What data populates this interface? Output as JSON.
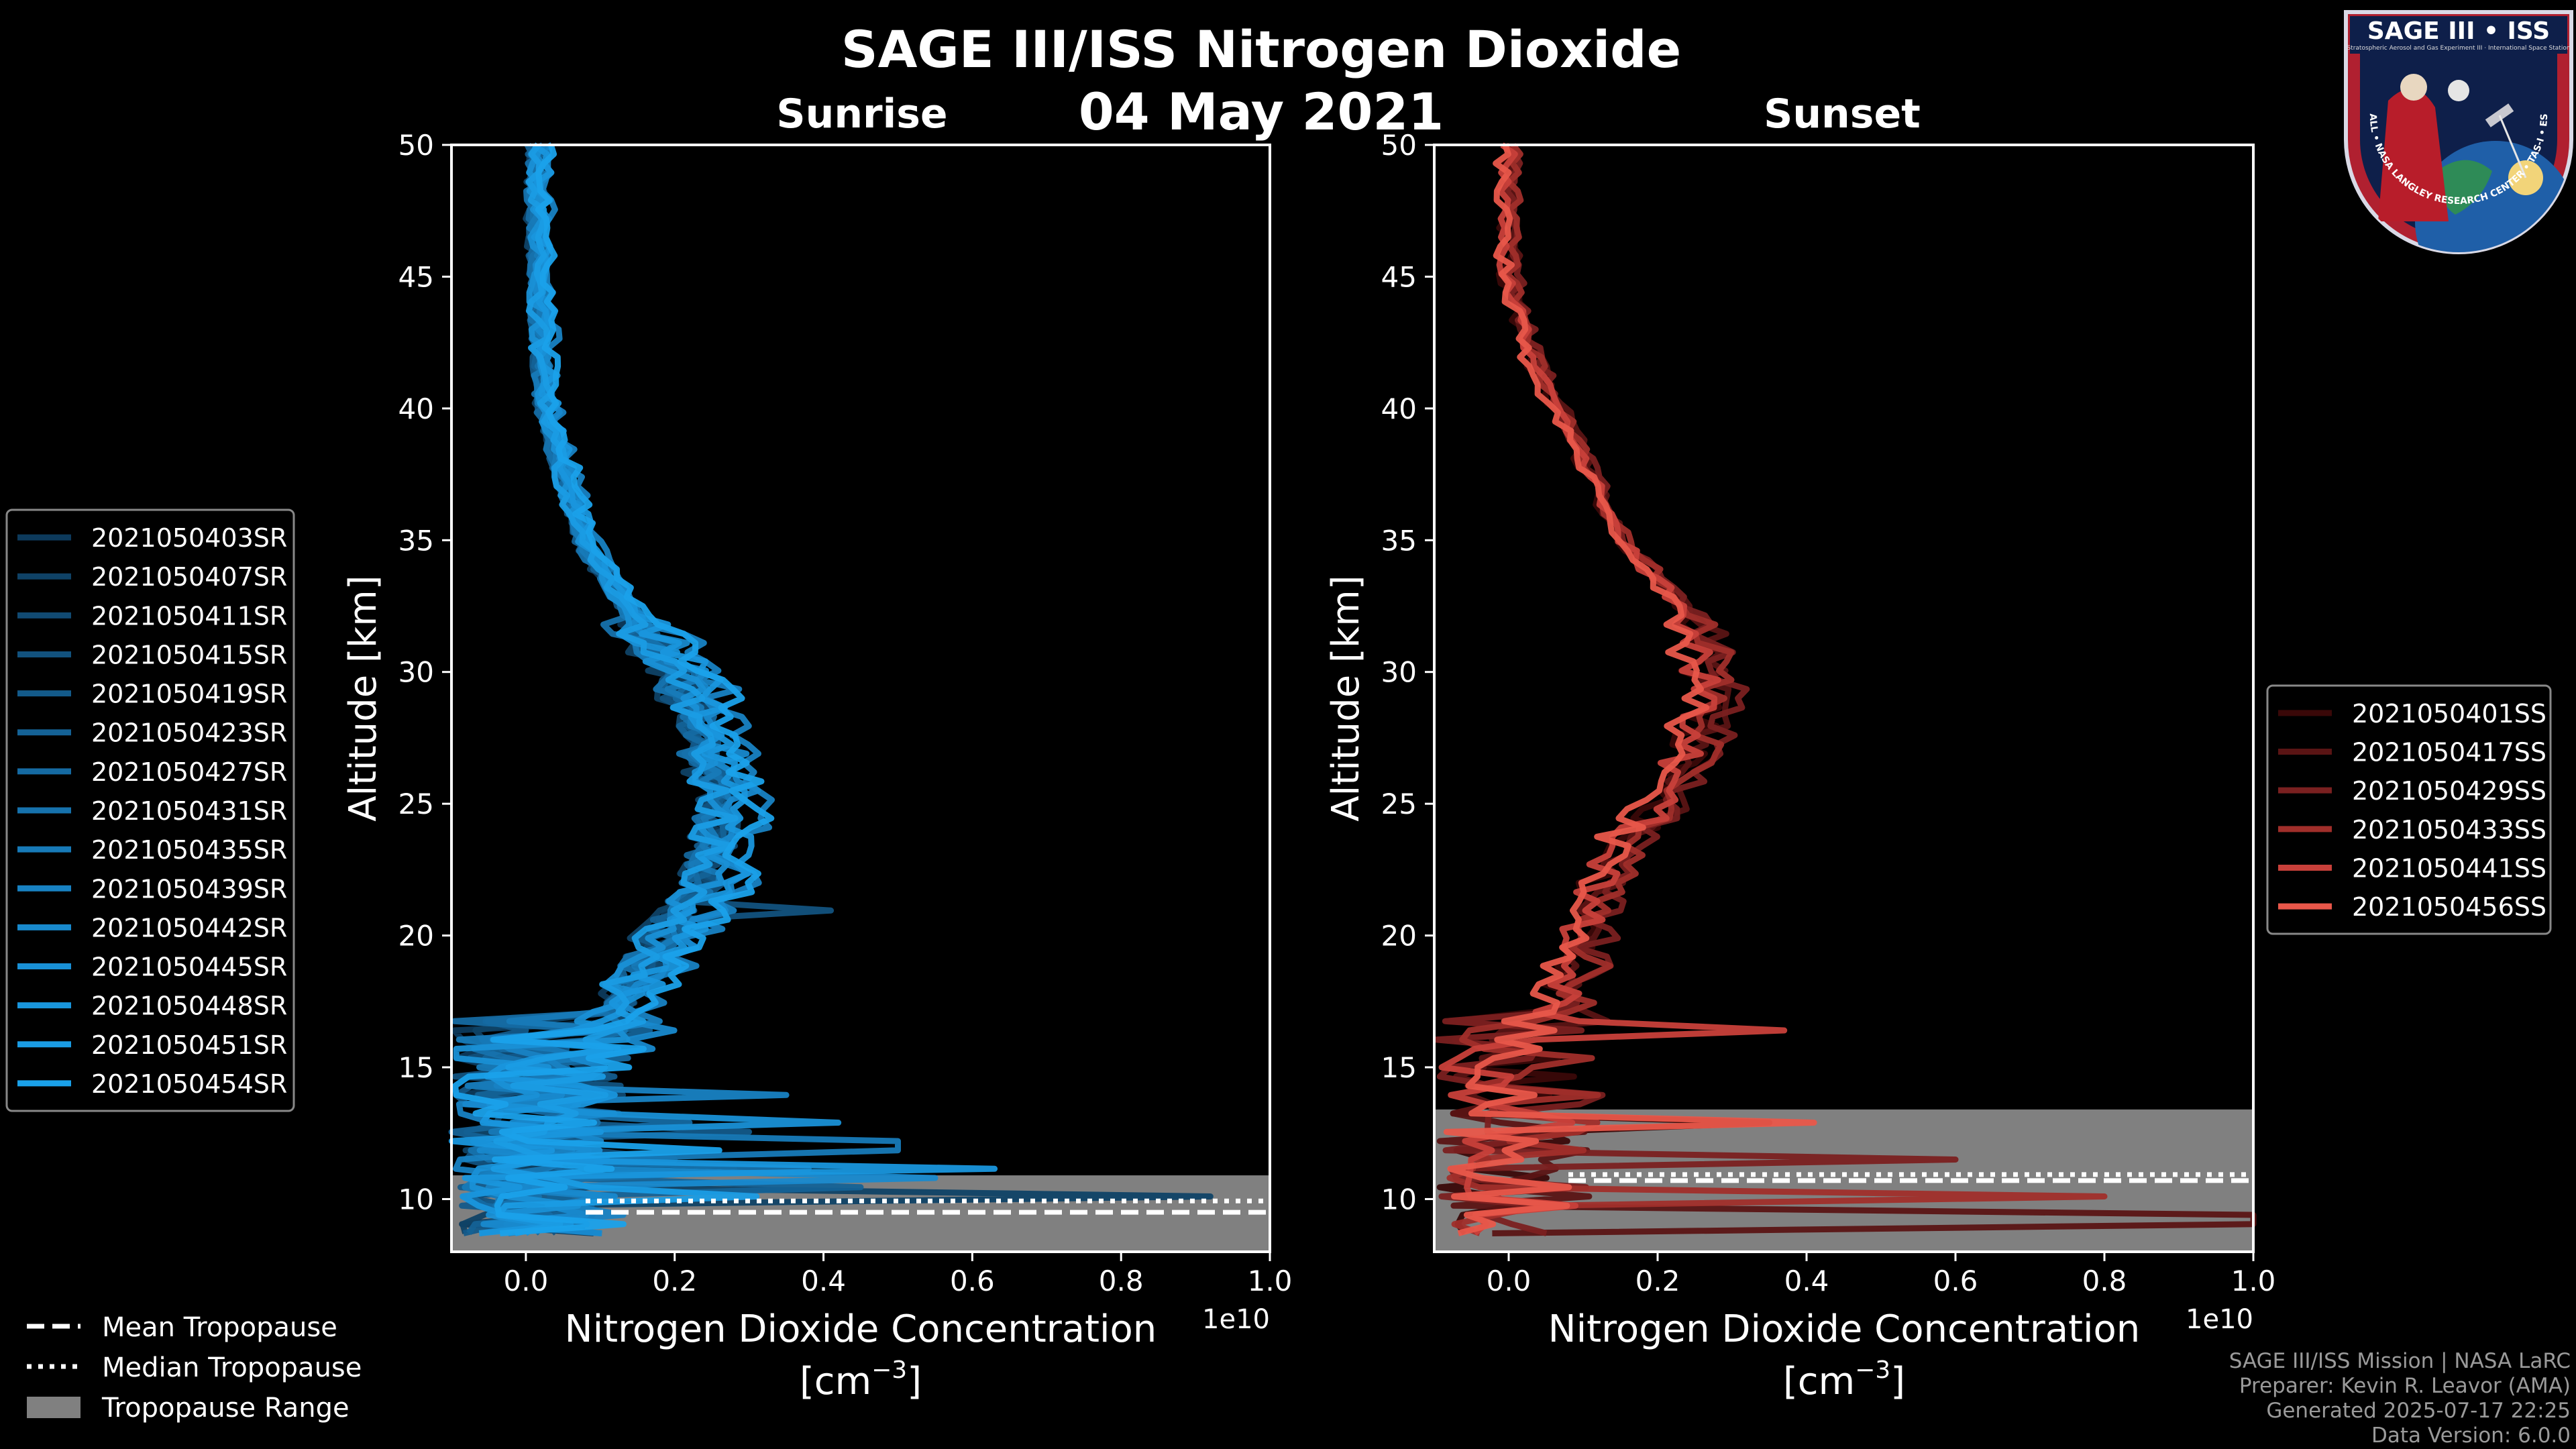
{
  "figure": {
    "title_line1": "SAGE III/ISS Nitrogen Dioxide",
    "title_line2": "04 May 2021",
    "credits": [
      "SAGE III/ISS Mission | NASA LaRC",
      "Preparer: Kevin R. Leavor (AMA)",
      "Generated 2025-07-17 22:25",
      "Data Version: 6.0.0"
    ],
    "tropopause_legend": [
      "Mean Tropopause",
      "Median Tropopause",
      "Tropopause Range"
    ],
    "logo": {
      "text_top": "SAGE III • ISS",
      "text_sub": "Stratospheric Aerosol and Gas Experiment III · International Space Station",
      "text_ring": "BALL • NASA LANGLEY RESEARCH CENTER • TAS-I • ESA"
    },
    "colors": {
      "background": "#000000",
      "sunrise_series": [
        "#0d3a5c",
        "#0f4266",
        "#114a72",
        "#12527e",
        "#135a8a",
        "#146296",
        "#156aa2",
        "#1672ad",
        "#177ab8",
        "#1882c3",
        "#1889cd",
        "#1990d6",
        "#1996dd",
        "#1a9ce4",
        "#1aa1ea"
      ],
      "sunset_series": [
        "#3a0808",
        "#5a1414",
        "#7a2020",
        "#a02e2a",
        "#c8403a",
        "#e8574a"
      ],
      "tropopause_range": "#808080",
      "tropopause_lines": "#ffffff"
    }
  },
  "chart_data": [
    {
      "type": "line",
      "title": "Sunrise",
      "xlabel": "Nitrogen Dioxide Concentration",
      "xunit": "[cm",
      "xunit_exp": "−3",
      "xunit_close": "]",
      "x_offset_label": "1e10",
      "ylabel": "Altitude [km]",
      "xlim": [
        -0.1,
        1.0
      ],
      "ylim": [
        8,
        50
      ],
      "xticks": [
        "0.0",
        "0.2",
        "0.4",
        "0.6",
        "0.8",
        "1.0"
      ],
      "xtick_values": [
        0.0,
        0.2,
        0.4,
        0.6,
        0.8,
        1.0
      ],
      "yticks": [
        "10",
        "15",
        "20",
        "25",
        "30",
        "35",
        "40",
        "45",
        "50"
      ],
      "ytick_values": [
        10,
        15,
        20,
        25,
        30,
        35,
        40,
        45,
        50
      ],
      "legend_position": "left",
      "tropopause": {
        "range": [
          8,
          10.9
        ],
        "mean": 9.5,
        "median": 9.7
      },
      "profile_key_points": [
        [
          50,
          0.02
        ],
        [
          45,
          0.02
        ],
        [
          40,
          0.03
        ],
        [
          35,
          0.08
        ],
        [
          32,
          0.15
        ],
        [
          30,
          0.22
        ],
        [
          27,
          0.26
        ],
        [
          25,
          0.28
        ],
        [
          22,
          0.26
        ],
        [
          20,
          0.2
        ],
        [
          18,
          0.15
        ],
        [
          16,
          0.1
        ],
        [
          14,
          0.06
        ],
        [
          12,
          0.03
        ],
        [
          10,
          0.02
        ],
        [
          8.5,
          0.02
        ]
      ],
      "series": [
        {
          "name": "2021050403SR",
          "spike": [
            11,
            0.28
          ]
        },
        {
          "name": "2021050407SR",
          "spike": [
            10,
            0.92
          ]
        },
        {
          "name": "2021050411SR",
          "spike": [
            11.5,
            0.2
          ]
        },
        {
          "name": "2021050415SR",
          "spike": [
            21,
            0.41
          ]
        },
        {
          "name": "2021050419SR",
          "spike": [
            12.5,
            0.3
          ]
        },
        {
          "name": "2021050423SR",
          "spike": [
            10.5,
            0.45
          ]
        },
        {
          "name": "2021050427SR",
          "spike": [
            13,
            0.22
          ]
        },
        {
          "name": "2021050431SR",
          "spike": [
            11,
            0.38
          ]
        },
        {
          "name": "2021050435SR",
          "spike": [
            12,
            0.5
          ]
        },
        {
          "name": "2021050439SR",
          "spike": [
            14,
            0.35
          ]
        },
        {
          "name": "2021050442SR",
          "spike": [
            10.8,
            0.55
          ]
        },
        {
          "name": "2021050445SR",
          "spike": [
            12.8,
            0.42
          ]
        },
        {
          "name": "2021050448SR",
          "spike": [
            11.2,
            0.63
          ]
        },
        {
          "name": "2021050451SR",
          "spike": [
            10.2,
            0.31
          ]
        },
        {
          "name": "2021050454SR",
          "spike": [
            11.8,
            0.26
          ]
        }
      ]
    },
    {
      "type": "line",
      "title": "Sunset",
      "xlabel": "Nitrogen Dioxide Concentration",
      "xunit": "[cm",
      "xunit_exp": "−3",
      "xunit_close": "]",
      "x_offset_label": "1e10",
      "ylabel": "Altitude [km]",
      "xlim": [
        -0.1,
        1.0
      ],
      "ylim": [
        8,
        50
      ],
      "xticks": [
        "0.0",
        "0.2",
        "0.4",
        "0.6",
        "0.8",
        "1.0"
      ],
      "xtick_values": [
        0.0,
        0.2,
        0.4,
        0.6,
        0.8,
        1.0
      ],
      "yticks": [
        "10",
        "15",
        "20",
        "25",
        "30",
        "35",
        "40",
        "45",
        "50"
      ],
      "ytick_values": [
        10,
        15,
        20,
        25,
        30,
        35,
        40,
        45,
        50
      ],
      "legend_position": "right",
      "tropopause": {
        "range": [
          8,
          13.4
        ],
        "mean": 10.7,
        "median": 10.7
      },
      "profile_key_points": [
        [
          50,
          0.0
        ],
        [
          45,
          0.0
        ],
        [
          42,
          0.03
        ],
        [
          38,
          0.1
        ],
        [
          35,
          0.15
        ],
        [
          32,
          0.25
        ],
        [
          29,
          0.27
        ],
        [
          26,
          0.23
        ],
        [
          24,
          0.18
        ],
        [
          22,
          0.12
        ],
        [
          20,
          0.1
        ],
        [
          18,
          0.08
        ],
        [
          16,
          0.04
        ],
        [
          14,
          0.02
        ],
        [
          12,
          0.02
        ],
        [
          10,
          0.02
        ],
        [
          8.5,
          0.02
        ]
      ],
      "series": [
        {
          "name": "2021050401SS",
          "spike": [
            12.8,
            0.35
          ]
        },
        {
          "name": "2021050417SS",
          "spike": [
            9.2,
            1.0
          ]
        },
        {
          "name": "2021050429SS",
          "spike": [
            11.5,
            0.6
          ]
        },
        {
          "name": "2021050433SS",
          "spike": [
            10.2,
            0.8
          ]
        },
        {
          "name": "2021050441SS",
          "spike": [
            16.5,
            0.37
          ]
        },
        {
          "name": "2021050456SS",
          "spike": [
            13.0,
            0.41
          ]
        }
      ]
    }
  ]
}
